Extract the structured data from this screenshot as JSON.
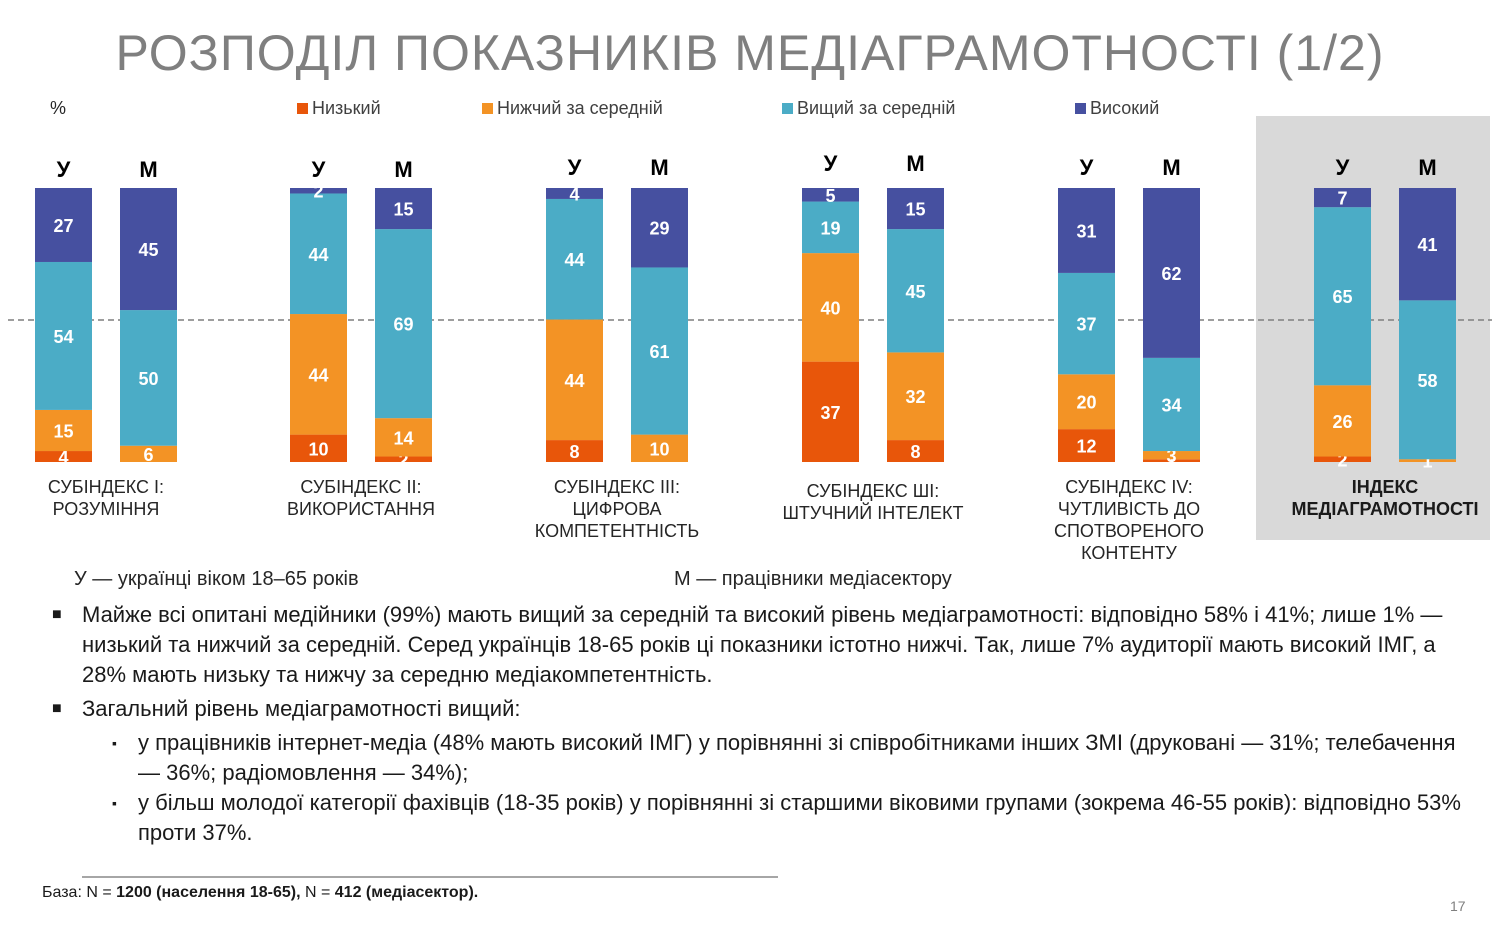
{
  "title": "РОЗПОДІЛ ПОКАЗНИКІВ МЕДІАГРАМОТНОСТІ (1/2)",
  "percent_label": "%",
  "colors": {
    "low": "#e8560a",
    "below": "#f39325",
    "above": "#4bacc6",
    "high": "#4650a0"
  },
  "chart_data": {
    "type": "bar",
    "stacked": true,
    "unit": "%",
    "series_order": [
      "Низький",
      "Нижчий за середній",
      "Вищий за середній",
      "Високий"
    ],
    "legend": [
      "Низький",
      "Нижчий за середній",
      "Вищий за середній",
      "Високий"
    ],
    "ylim": [
      0,
      100
    ],
    "groups": [
      {
        "label": "СУБІНДЕКС І: РОЗУМІННЯ",
        "bars": [
          {
            "label": "У",
            "values": [
              4,
              15,
              54,
              27
            ]
          },
          {
            "label": "М",
            "values": [
              0,
              6,
              50,
              45
            ]
          }
        ]
      },
      {
        "label": "СУБІНДЕКС ІІ: ВИКОРИСТАННЯ",
        "bars": [
          {
            "label": "У",
            "values": [
              10,
              44,
              44,
              2
            ]
          },
          {
            "label": "М",
            "values": [
              2,
              14,
              69,
              15
            ]
          }
        ]
      },
      {
        "label": "СУБІНДЕКС ІІІ: ЦИФРОВА КОМПЕТЕНТНІСТЬ",
        "bars": [
          {
            "label": "У",
            "values": [
              8,
              44,
              44,
              4
            ]
          },
          {
            "label": "М",
            "values": [
              0,
              10,
              61,
              29
            ]
          }
        ]
      },
      {
        "label": "СУБІНДЕКС ШІ: ШТУЧНИЙ ІНТЕЛЕКТ",
        "bars": [
          {
            "label": "У",
            "values": [
              37,
              40,
              19,
              5
            ]
          },
          {
            "label": "М",
            "values": [
              8,
              32,
              45,
              15
            ]
          }
        ]
      },
      {
        "label": "СУБІНДЕКС ІV: ЧУТЛИВІСТЬ ДО СПОТВОРЕНОГО КОНТЕНТУ",
        "bars": [
          {
            "label": "У",
            "values": [
              12,
              20,
              37,
              31
            ]
          },
          {
            "label": "М",
            "values": [
              1,
              3,
              34,
              62
            ]
          }
        ]
      },
      {
        "label": "ІНДЕКС МЕДІАГРАМОТНОСТІ",
        "bars": [
          {
            "label": "У",
            "values": [
              2,
              26,
              65,
              7
            ]
          },
          {
            "label": "М",
            "values": [
              0,
              1,
              58,
              41
            ]
          }
        ]
      }
    ]
  },
  "group_labels": [
    [
      "СУБІНДЕКС І:",
      "РОЗУМІННЯ"
    ],
    [
      "СУБІНДЕКС ІІ:",
      "ВИКОРИСТАННЯ"
    ],
    [
      "СУБІНДЕКС ІІІ:",
      "ЦИФРОВА",
      "КОМПЕТЕНТНІСТЬ"
    ],
    [
      "СУБІНДЕКС ШІ:",
      "ШТУЧНИЙ ІНТЕЛЕКТ"
    ],
    [
      "СУБІНДЕКС ІV:",
      "ЧУТЛИВІСТЬ ДО",
      "СПОТВОРЕНОГО",
      "КОНТЕНТУ"
    ],
    [
      "ІНДЕКС",
      "МЕДІАГРАМОТНОСТІ"
    ]
  ],
  "definitions": {
    "u": "У — українці віком 18–65 років",
    "m": "М — працівники медіасектору"
  },
  "bullets": {
    "b1": " Майже всі опитані медійники (99%) мають вищий за середній та високий рівень медіаграмотності: відповідно 58% і 41%; лише 1% — низький та нижчий за середній. Серед українців 18-65 років ці показники істотно нижчі. Так, лише 7% аудиторії мають високий ІМГ, а 28% мають низьку та нижчу за середню медіакомпетентність.",
    "b2": "Загальний рівень медіаграмотності вищий:",
    "sub1": "у працівників інтернет-медіа (48% мають високий ІМГ) у порівнянні зі співробітниками інших ЗМІ (друковані — 31%; телебачення — 36%; радіомовлення — 34%);",
    "sub2": "у більш молодої категорії фахівців (18-35 років) у порівнянні зі старшими віковими групами (зокрема 46-55 років): відповідно 53% проти 37%."
  },
  "base": {
    "prefix": "База: N = ",
    "n1": "1200 (населення 18-65),",
    "mid": " N = ",
    "n2": "412 (медіасектор)."
  },
  "page_number": "17"
}
